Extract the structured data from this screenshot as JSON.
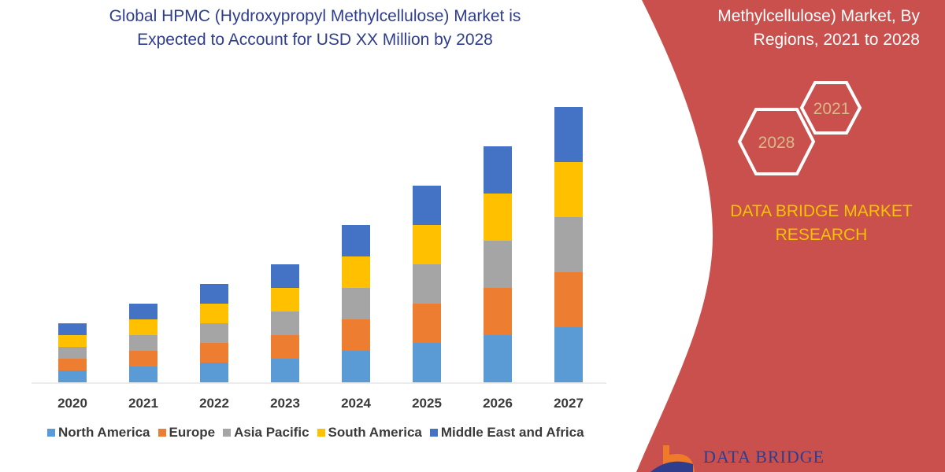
{
  "header": {
    "title_line1": "Global HPMC (Hydroxypropyl Methylcellulose) Market is",
    "title_line2": "Expected to Account for USD XX Million by 2028",
    "right_title_line1": "Methylcellulose) Market, By",
    "right_title_line2": "Regions, 2021 to 2028"
  },
  "badges": {
    "year_start": "2021",
    "year_end": "2028"
  },
  "brand": {
    "line1": "DATA BRIDGE MARKET",
    "line2": "RESEARCH",
    "logo_text": "DATA BRIDGE"
  },
  "colors": {
    "panel": "#c9504c",
    "brand_yellow": "#f5c400",
    "badge_text": "#d9b88a"
  },
  "chart_data": {
    "type": "bar",
    "stacked": true,
    "categories": [
      "2020",
      "2021",
      "2022",
      "2023",
      "2024",
      "2025",
      "2026",
      "2027"
    ],
    "series": [
      {
        "name": "North America",
        "color": "#5b9bd5",
        "values": [
          15,
          20,
          25,
          30,
          40,
          50,
          60,
          70
        ]
      },
      {
        "name": "Europe",
        "color": "#ed7d31",
        "values": [
          15,
          20,
          25,
          30,
          40,
          50,
          60,
          70
        ]
      },
      {
        "name": "Asia Pacific",
        "color": "#a5a5a5",
        "values": [
          15,
          20,
          25,
          30,
          40,
          50,
          60,
          70
        ]
      },
      {
        "name": "South America",
        "color": "#ffc000",
        "values": [
          15,
          20,
          25,
          30,
          40,
          50,
          60,
          70
        ]
      },
      {
        "name": "Middle East and Africa",
        "color": "#4472c4",
        "values": [
          15,
          20,
          25,
          30,
          40,
          50,
          60,
          70
        ]
      }
    ],
    "title": "",
    "xlabel": "",
    "ylabel": "",
    "y_axis_shown": false,
    "grid": false,
    "legend_position": "bottom"
  }
}
